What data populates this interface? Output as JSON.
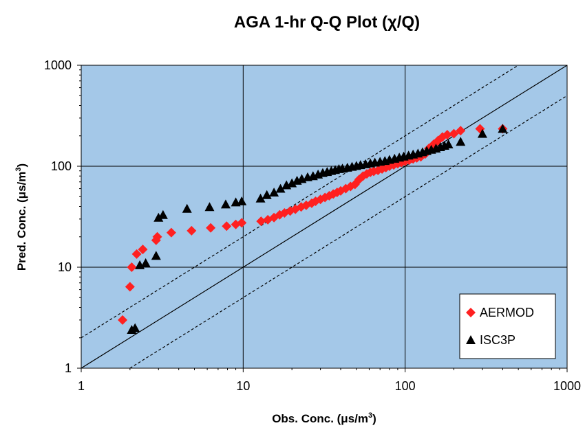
{
  "chart_data": {
    "type": "scatter",
    "title": "AGA 1-hr Q-Q Plot (χ/Q)",
    "xlabel": "Obs. Conc. (μs/m",
    "xlabel_sup": "3",
    "xlabel_end": ")",
    "ylabel": "Pred. Conc. (μs/m",
    "ylabel_sup": "3",
    "ylabel_end": ")",
    "xscale": "log",
    "yscale": "log",
    "xlim": [
      1,
      1000
    ],
    "ylim": [
      1,
      1000
    ],
    "x_ticks": [
      "1",
      "10",
      "100",
      "1000"
    ],
    "y_ticks": [
      "1",
      "10",
      "100",
      "1000"
    ],
    "grid": true,
    "plot_background": "#a4c8e8",
    "legend_position": "bottom-right",
    "reference_lines": [
      {
        "style": "solid",
        "factor": 1
      },
      {
        "style": "dashed",
        "factor": 2
      },
      {
        "style": "dashed",
        "factor": 0.5
      }
    ],
    "series": [
      {
        "name": "AERMOD",
        "marker": "diamond",
        "color": "#ff2020",
        "x": [
          1.8,
          2.0,
          2.05,
          2.2,
          2.4,
          2.9,
          2.95,
          3.6,
          4.8,
          6.3,
          7.9,
          9.0,
          9.8,
          12.9,
          14.2,
          15.5,
          16.8,
          18.0,
          19.5,
          21,
          22.8,
          24.5,
          26.5,
          28,
          30,
          32,
          34,
          36,
          38,
          40,
          43,
          46,
          49,
          52,
          55,
          58,
          61,
          64,
          68,
          72,
          76,
          80,
          85,
          90,
          95,
          100,
          106,
          112,
          118,
          125,
          133,
          140,
          150,
          160,
          170,
          182,
          200,
          220,
          290,
          400
        ],
        "y": [
          3.0,
          6.4,
          10.0,
          13.5,
          15.0,
          18.5,
          20.0,
          22.0,
          23.0,
          24.5,
          25.5,
          26.5,
          27.5,
          28.5,
          29.5,
          31.0,
          33.0,
          34.5,
          36.0,
          37.5,
          39.5,
          41.0,
          43.0,
          45.0,
          47.0,
          49.0,
          51.0,
          53.0,
          55.0,
          57.0,
          60.0,
          63.0,
          66.0,
          74.0,
          80.0,
          84.0,
          87.0,
          89.0,
          91.0,
          94.0,
          97.0,
          100.0,
          103.0,
          106.0,
          109.0,
          112.0,
          115.0,
          118.0,
          121.0,
          124.0,
          132.0,
          150.0,
          165.0,
          180.0,
          195.0,
          205.0,
          210.0,
          225.0,
          235.0,
          235.0
        ]
      },
      {
        "name": "ISC3P",
        "marker": "triangle",
        "color": "#000000",
        "x": [
          2.05,
          2.15,
          2.3,
          2.5,
          2.9,
          3.0,
          3.2,
          4.5,
          6.2,
          7.8,
          9.0,
          9.8,
          12.8,
          14.0,
          15.5,
          17.0,
          18.5,
          20,
          21.5,
          23,
          25,
          27,
          29,
          31,
          33,
          35,
          37,
          39,
          41,
          44,
          47,
          50,
          53,
          57,
          61,
          65,
          70,
          75,
          80,
          86,
          92,
          98,
          105,
          112,
          120,
          128,
          136,
          145,
          155,
          165,
          175,
          185,
          220,
          300,
          400
        ],
        "y": [
          2.4,
          2.5,
          10.5,
          11.0,
          13.0,
          31.0,
          33.0,
          38.0,
          39.5,
          42.0,
          44.0,
          45.0,
          48.0,
          52.0,
          55.0,
          60.0,
          65.0,
          68.0,
          72.0,
          75.0,
          78.0,
          80.0,
          83.0,
          86.0,
          88.0,
          90.0,
          92.0,
          94.0,
          95.0,
          97.0,
          99.0,
          101.0,
          103.0,
          105.0,
          107.0,
          109.0,
          111.0,
          113.0,
          116.0,
          119.0,
          122.0,
          125.0,
          128.0,
          131.0,
          134.0,
          138.0,
          142.0,
          146.0,
          150.0,
          155.0,
          160.0,
          165.0,
          175.0,
          210.0,
          235.0
        ]
      }
    ]
  }
}
